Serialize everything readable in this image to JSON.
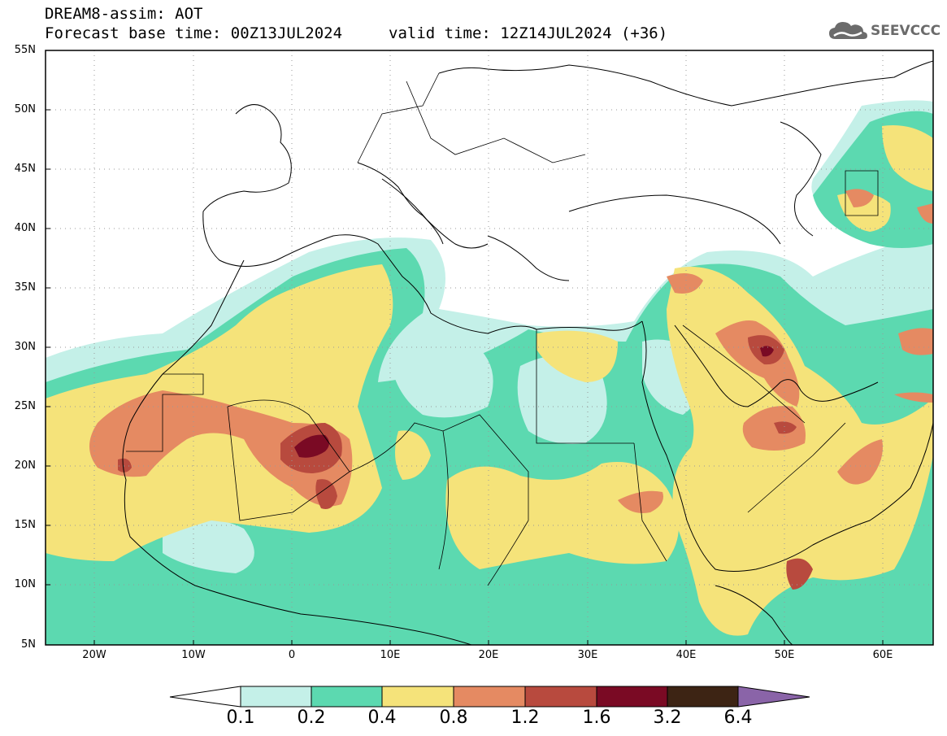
{
  "header": {
    "title": "DREAM8-assim: AOT",
    "base_time": "Forecast base time: 00Z13JUL2024",
    "valid_time": "valid time: 12Z14JUL2024 (+36)",
    "logo_text": "SEEVCCC",
    "logo_icon": "cloud-icon"
  },
  "map": {
    "projection": "cylindrical equidistant",
    "lon_range": [
      -25,
      65
    ],
    "lat_range": [
      5,
      55
    ],
    "gridlines": "dotted",
    "lat_labels": [
      "55N",
      "50N",
      "45N",
      "40N",
      "35N",
      "30N",
      "25N",
      "20N",
      "15N",
      "10N",
      "5N"
    ],
    "lon_labels": [
      "20W",
      "10W",
      "0",
      "10E",
      "20E",
      "30E",
      "40E",
      "50E",
      "60E"
    ]
  },
  "colorbar": {
    "labels": [
      "0.1",
      "0.2",
      "0.4",
      "0.8",
      "1.2",
      "1.6",
      "3.2",
      "6.4"
    ],
    "colors": [
      "#ffffff",
      "#c4f0e8",
      "#5cd9b0",
      "#f5e37a",
      "#e58a62",
      "#b84a3e",
      "#7a0a24",
      "#3d2414",
      "#8a64a8"
    ]
  }
}
